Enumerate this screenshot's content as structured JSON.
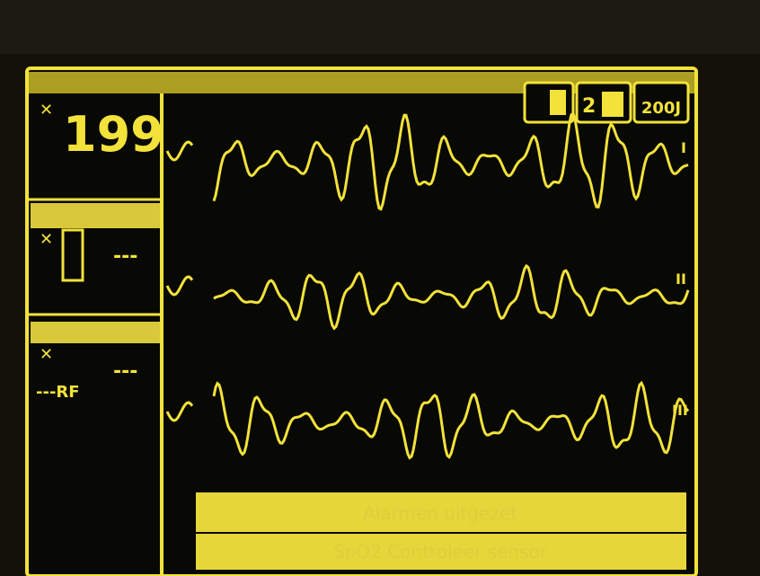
{
  "monitor": {
    "heart_rate": "199",
    "energy": "200J",
    "pads_count": "2",
    "spo2_value": "---",
    "nibp_value": "---",
    "nibp_rf": "---RF",
    "leads": [
      "I",
      "II",
      "III"
    ],
    "messages": [
      "Alarmen uitgezet",
      "SpO2 Controleer sensor"
    ]
  }
}
